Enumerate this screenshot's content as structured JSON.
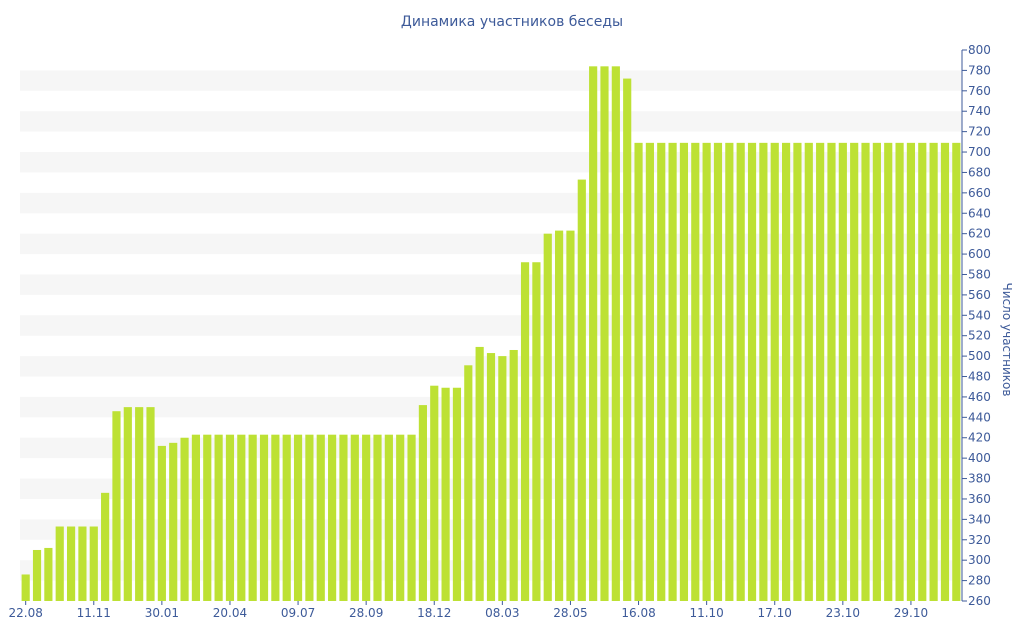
{
  "chart_data": {
    "type": "bar",
    "title": "Динамика участников беседы",
    "ylabel": "Число участников",
    "xlabel": "",
    "ylim": [
      260,
      800
    ],
    "y_tick_step": 20,
    "bar_color": "#bde134",
    "band_color": "#f6f6f6",
    "text_color": "#3d5a99",
    "x_tick_labels": [
      {
        "label": "22.08",
        "index": 0
      },
      {
        "label": "11.11",
        "index": 6
      },
      {
        "label": "30.01",
        "index": 12
      },
      {
        "label": "20.04",
        "index": 18
      },
      {
        "label": "09.07",
        "index": 24
      },
      {
        "label": "28.09",
        "index": 30
      },
      {
        "label": "18.12",
        "index": 36
      },
      {
        "label": "08.03",
        "index": 42
      },
      {
        "label": "28.05",
        "index": 48
      },
      {
        "label": "16.08",
        "index": 54
      },
      {
        "label": "11.10",
        "index": 60
      },
      {
        "label": "17.10",
        "index": 66
      },
      {
        "label": "23.10",
        "index": 72
      },
      {
        "label": "29.10",
        "index": 78
      }
    ],
    "values": [
      286,
      310,
      312,
      333,
      333,
      333,
      333,
      366,
      446,
      450,
      450,
      450,
      412,
      415,
      420,
      423,
      423,
      423,
      423,
      423,
      423,
      423,
      423,
      423,
      423,
      423,
      423,
      423,
      423,
      423,
      423,
      423,
      423,
      423,
      423,
      452,
      471,
      469,
      469,
      491,
      509,
      503,
      500,
      506,
      592,
      592,
      620,
      623,
      623,
      673,
      784,
      784,
      784,
      772,
      709,
      709,
      709,
      709,
      709,
      709,
      709,
      709,
      709,
      709,
      709,
      709,
      709,
      709,
      709,
      709,
      709,
      709,
      709,
      709,
      709,
      709,
      709,
      709,
      709,
      709,
      709,
      709,
      709
    ]
  }
}
